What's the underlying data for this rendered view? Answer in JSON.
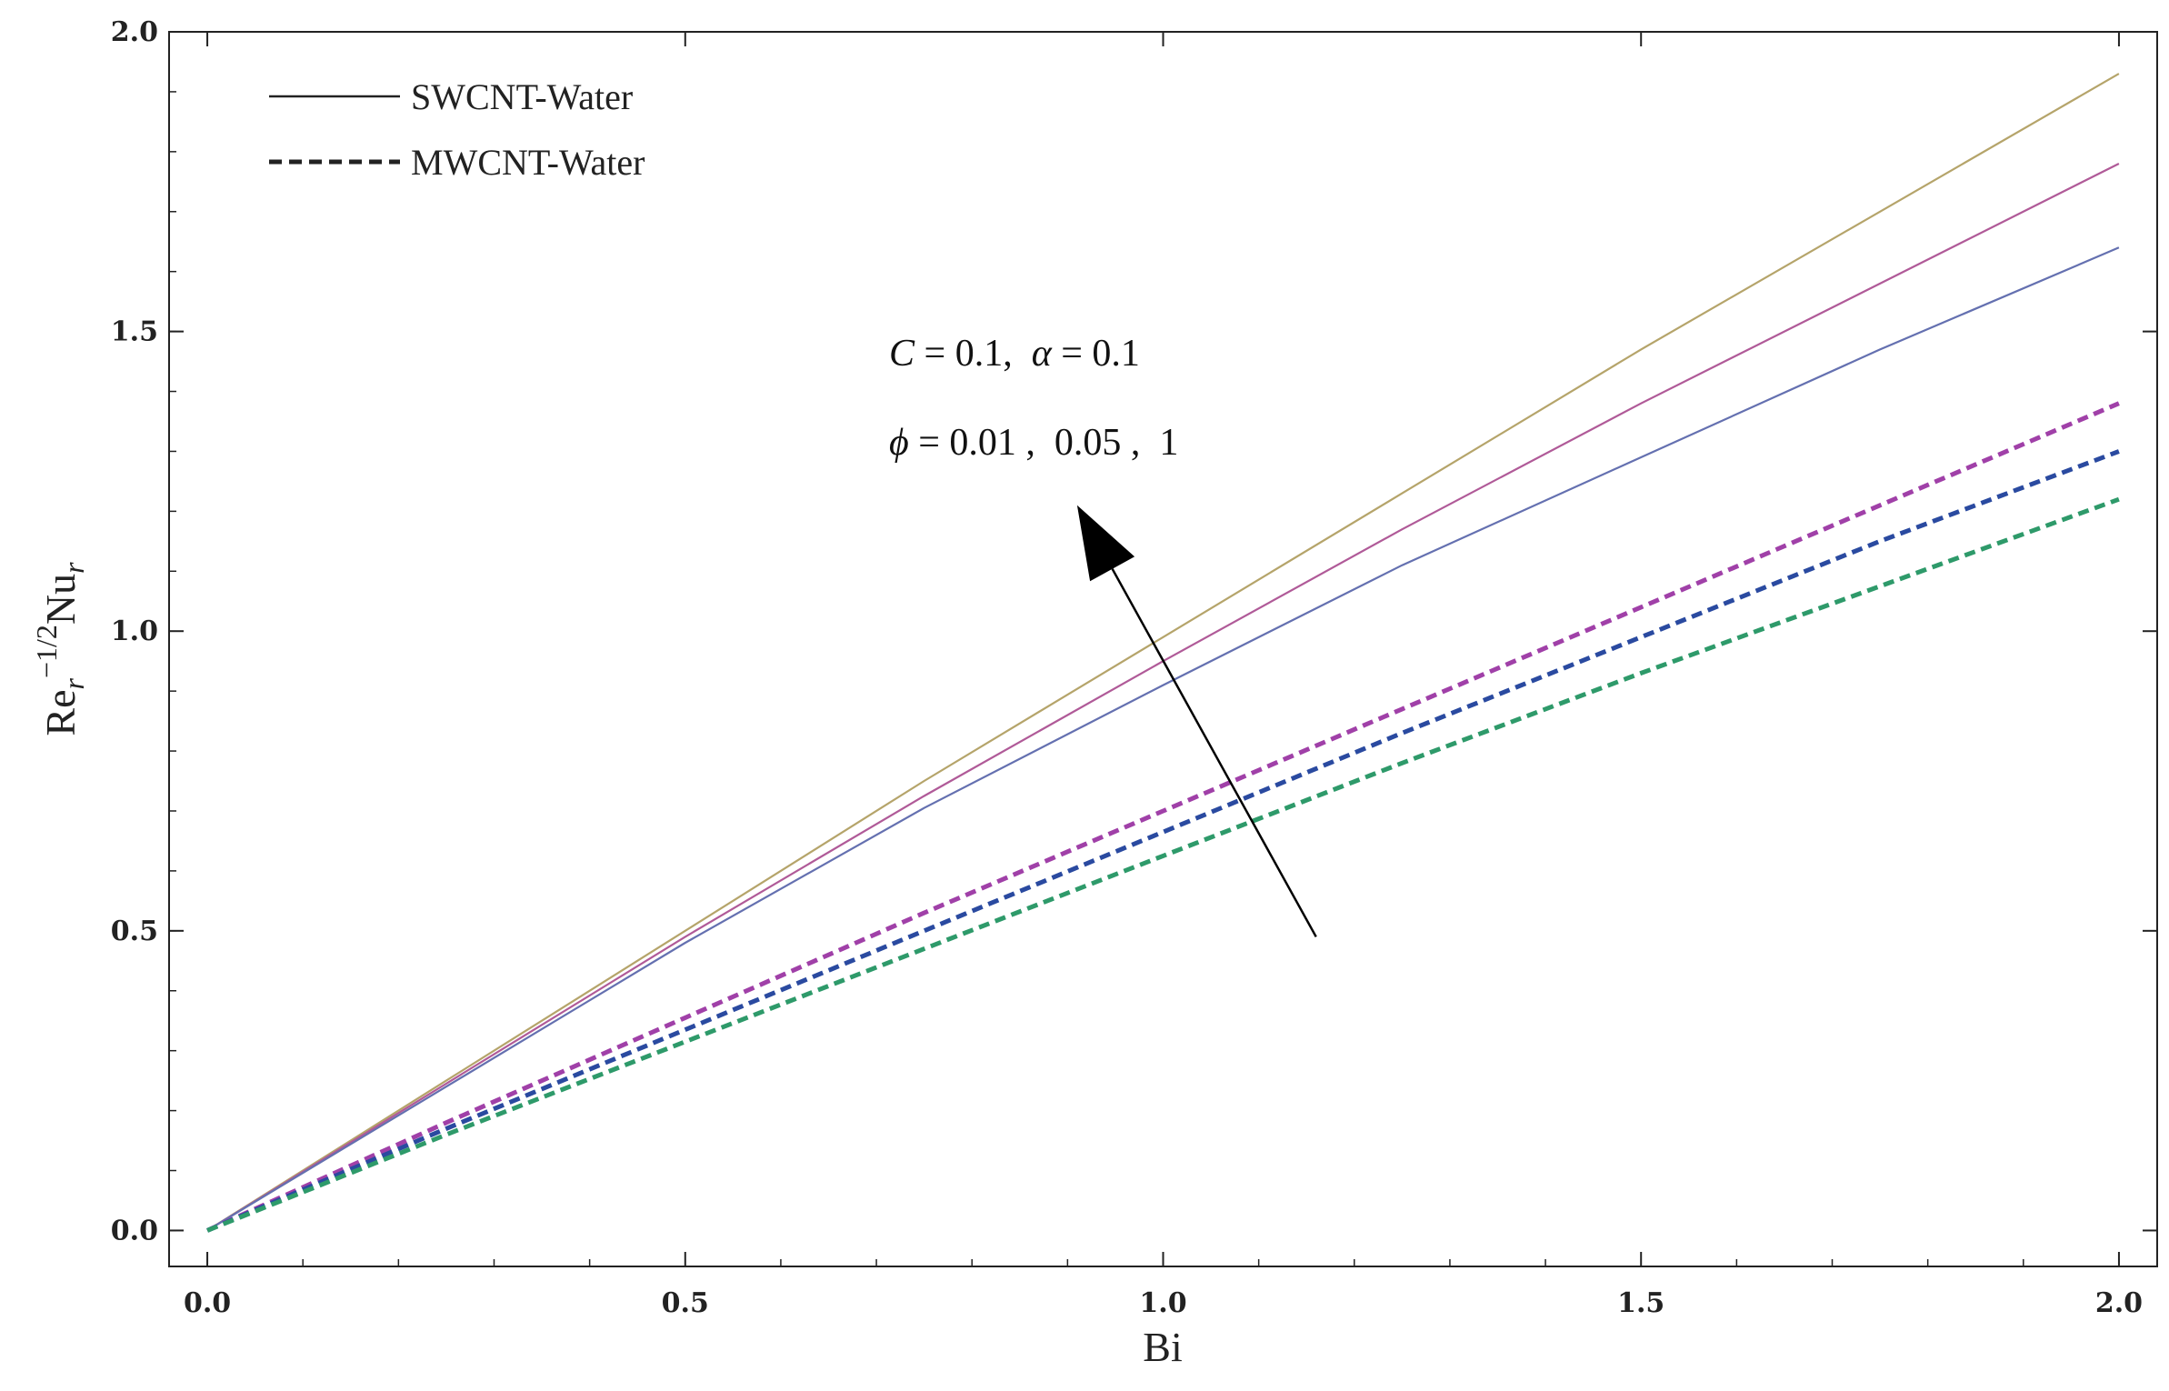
{
  "chart_data": {
    "type": "line",
    "title": "",
    "xlabel": "Bi",
    "ylabel": "Re_r^{-1/2} Nu_r",
    "ylabel_parts": {
      "base1": "Re",
      "sub1": "r",
      "sup1": "−1/2",
      "base2": "Nu",
      "sub2": "r"
    },
    "xlim": [
      -0.04,
      2.04
    ],
    "ylim": [
      -0.06,
      2.0
    ],
    "xticks": [
      0.0,
      0.5,
      1.0,
      1.5,
      2.0
    ],
    "xtick_labels": [
      "0.0",
      "0.5",
      "1.0",
      "1.5",
      "2.0"
    ],
    "yticks": [
      0.0,
      0.5,
      1.0,
      1.5,
      2.0
    ],
    "ytick_labels": [
      "0.0",
      "0.5",
      "1.0",
      "1.5",
      "2.0"
    ],
    "grid": false,
    "legend_position": "top-left",
    "legend": [
      {
        "label": "SWCNT-Water",
        "style": "solid"
      },
      {
        "label": "MWCNT-Water",
        "style": "dashed"
      }
    ],
    "series": [
      {
        "name": "SWCNT-Water, φ = 1",
        "style": "solid",
        "color": "#b5a46a",
        "x": [
          0,
          0.25,
          0.5,
          0.75,
          1.0,
          1.25,
          1.5,
          1.75,
          2.0
        ],
        "y": [
          0,
          0.25,
          0.5,
          0.75,
          0.99,
          1.23,
          1.47,
          1.7,
          1.93
        ]
      },
      {
        "name": "SWCNT-Water, φ = 0.05",
        "style": "solid",
        "color": "#b05a98",
        "x": [
          0,
          0.25,
          0.5,
          0.75,
          1.0,
          1.25,
          1.5,
          1.75,
          2.0
        ],
        "y": [
          0,
          0.245,
          0.49,
          0.725,
          0.95,
          1.17,
          1.38,
          1.58,
          1.78
        ]
      },
      {
        "name": "SWCNT-Water, φ = 0.01",
        "style": "solid",
        "color": "#6470b0",
        "x": [
          0,
          0.25,
          0.5,
          0.75,
          1.0,
          1.25,
          1.5,
          1.75,
          2.0
        ],
        "y": [
          0,
          0.24,
          0.48,
          0.705,
          0.91,
          1.11,
          1.29,
          1.47,
          1.64
        ]
      },
      {
        "name": "MWCNT-Water, φ = 1",
        "style": "dashed",
        "color": "#a040a8",
        "x": [
          0,
          0.25,
          0.5,
          0.75,
          1.0,
          1.25,
          1.5,
          1.75,
          2.0
        ],
        "y": [
          0,
          0.18,
          0.355,
          0.53,
          0.7,
          0.87,
          1.04,
          1.21,
          1.38
        ]
      },
      {
        "name": "MWCNT-Water, φ = 0.05",
        "style": "dashed",
        "color": "#2a4aa0",
        "x": [
          0,
          0.25,
          0.5,
          0.75,
          1.0,
          1.25,
          1.5,
          1.75,
          2.0
        ],
        "y": [
          0,
          0.17,
          0.335,
          0.5,
          0.665,
          0.83,
          0.99,
          1.15,
          1.3
        ]
      },
      {
        "name": "MWCNT-Water, φ = 0.01",
        "style": "dashed",
        "color": "#2e9a6a",
        "x": [
          0,
          0.25,
          0.5,
          0.75,
          1.0,
          1.25,
          1.5,
          1.75,
          2.0
        ],
        "y": [
          0,
          0.16,
          0.315,
          0.47,
          0.625,
          0.78,
          0.93,
          1.075,
          1.22
        ]
      }
    ],
    "annotations": {
      "line1": {
        "v1": "C",
        "t1": " = 0.1,  ",
        "v2": "α",
        "t2": " = 0.1"
      },
      "line2": {
        "v1": "ϕ",
        "t1": " = 0.01 ,  0.05 ,  1"
      },
      "arrow": {
        "from": [
          1.16,
          0.49
        ],
        "to": [
          0.91,
          1.21
        ],
        "meaning": "increasing ϕ"
      }
    },
    "colors": {
      "axis": "#222222",
      "arrow": "#000000"
    }
  }
}
